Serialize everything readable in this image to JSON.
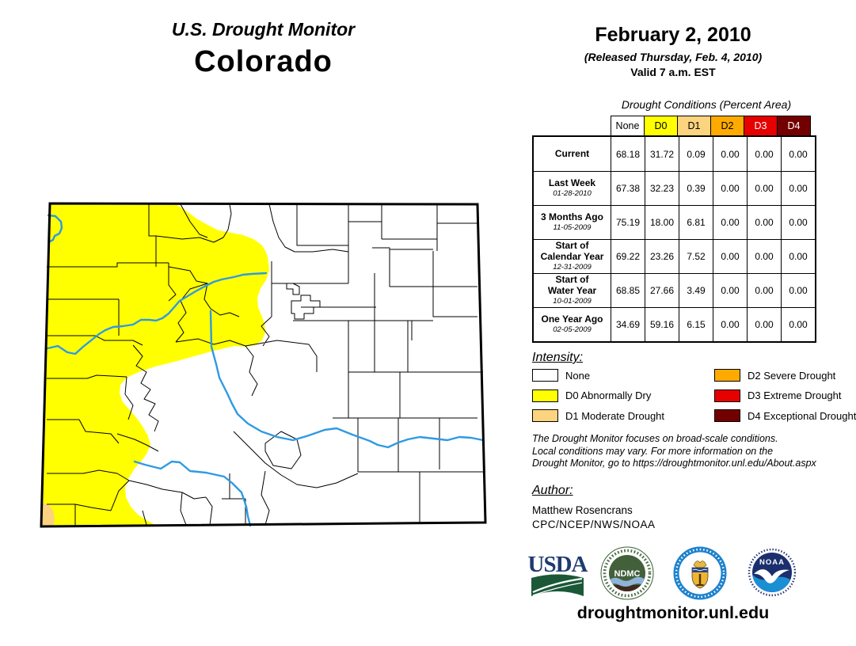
{
  "header": {
    "title_line1": "U.S. Drought Monitor",
    "title_line2": "Colorado"
  },
  "date_block": {
    "date": "February 2, 2010",
    "released": "(Released Thursday, Feb. 4, 2010)",
    "valid": "Valid 7 a.m. EST"
  },
  "table": {
    "title": "Drought Conditions (Percent Area)",
    "columns": [
      "None",
      "D0",
      "D1",
      "D2",
      "D3",
      "D4"
    ],
    "column_colors": [
      "#FFFFFF",
      "#FFFF00",
      "#FCD37F",
      "#FFAA00",
      "#E60000",
      "#730000"
    ],
    "column_text_colors": [
      "#000000",
      "#000000",
      "#000000",
      "#000000",
      "#FFFFFF",
      "#FFFFFF"
    ],
    "rows": [
      {
        "label": "Current",
        "date": "",
        "values": [
          "68.18",
          "31.72",
          "0.09",
          "0.00",
          "0.00",
          "0.00"
        ]
      },
      {
        "label": "Last Week",
        "date": "01-28-2010",
        "values": [
          "67.38",
          "32.23",
          "0.39",
          "0.00",
          "0.00",
          "0.00"
        ]
      },
      {
        "label": "3 Months Ago",
        "date": "11-05-2009",
        "values": [
          "75.19",
          "18.00",
          "6.81",
          "0.00",
          "0.00",
          "0.00"
        ]
      },
      {
        "label": "Start of\nCalendar Year",
        "date": "12-31-2009",
        "values": [
          "69.22",
          "23.26",
          "7.52",
          "0.00",
          "0.00",
          "0.00"
        ]
      },
      {
        "label": "Start of\nWater Year",
        "date": "10-01-2009",
        "values": [
          "68.85",
          "27.66",
          "3.49",
          "0.00",
          "0.00",
          "0.00"
        ]
      },
      {
        "label": "One Year Ago",
        "date": "02-05-2009",
        "values": [
          "34.69",
          "59.16",
          "6.15",
          "0.00",
          "0.00",
          "0.00"
        ]
      }
    ]
  },
  "legend": {
    "title": "Intensity:",
    "items": [
      {
        "label": "None",
        "color": "#FFFFFF"
      },
      {
        "label": "D0 Abnormally Dry",
        "color": "#FFFF00"
      },
      {
        "label": "D1 Moderate Drought",
        "color": "#FCD37F"
      },
      {
        "label": "D2 Severe Drought",
        "color": "#FFAA00"
      },
      {
        "label": "D3 Extreme Drought",
        "color": "#E60000"
      },
      {
        "label": "D4 Exceptional Drought",
        "color": "#730000"
      }
    ]
  },
  "disclaimer": "The Drought Monitor focuses on broad-scale conditions.\nLocal conditions may vary. For more information on the\nDrought Monitor, go to https://droughtmonitor.unl.edu/About.aspx",
  "author": {
    "title": "Author:",
    "name": "Matthew Rosencrans",
    "org": "CPC/NCEP/NWS/NOAA"
  },
  "footer": {
    "url": "droughtmonitor.unl.edu"
  },
  "logos": {
    "usda_label": "USDA",
    "ndmc_label": "NDMC",
    "noaa_label": "NOAA"
  },
  "map": {
    "colors": {
      "none": "#FFFFFF",
      "d0": "#FFFF00",
      "d1": "#FCD37F",
      "river": "#2F9AE3",
      "border": "#000000"
    }
  }
}
